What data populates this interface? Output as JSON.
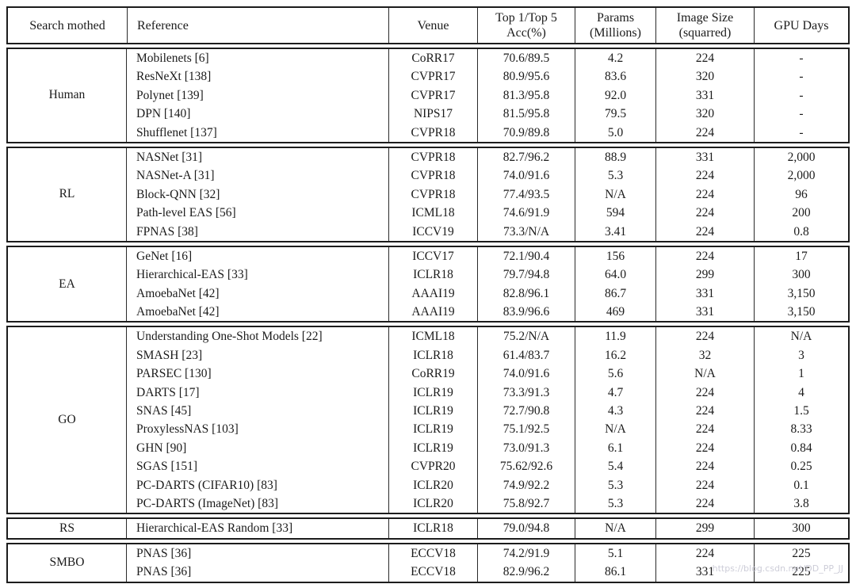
{
  "table": {
    "header": {
      "cells": [
        {
          "label": "Search mothed"
        },
        {
          "label": "Reference"
        },
        {
          "label": "Venue"
        },
        {
          "label": "Top 1/Top 5\nAcc(%)"
        },
        {
          "label": "Params\n(Millions)"
        },
        {
          "label": "Image Size\n(squarred)"
        },
        {
          "label": "GPU Days"
        }
      ]
    },
    "groups": [
      {
        "method": "Human",
        "rows": [
          {
            "reference": "Mobilenets [6]",
            "venue": "CoRR17",
            "acc": "70.6/89.5",
            "params": "4.2",
            "image_size": "224",
            "gpu_days": "-"
          },
          {
            "reference": "ResNeXt [138]",
            "venue": "CVPR17",
            "acc": "80.9/95.6",
            "params": "83.6",
            "image_size": "320",
            "gpu_days": "-"
          },
          {
            "reference": "Polynet [139]",
            "venue": "CVPR17",
            "acc": "81.3/95.8",
            "params": "92.0",
            "image_size": "331",
            "gpu_days": "-"
          },
          {
            "reference": "DPN [140]",
            "venue": "NIPS17",
            "acc": "81.5/95.8",
            "params": "79.5",
            "image_size": "320",
            "gpu_days": "-"
          },
          {
            "reference": "Shufflenet [137]",
            "venue": "CVPR18",
            "acc": "70.9/89.8",
            "params": "5.0",
            "image_size": "224",
            "gpu_days": "-"
          }
        ]
      },
      {
        "method": "RL",
        "rows": [
          {
            "reference": "NASNet [31]",
            "venue": "CVPR18",
            "acc": "82.7/96.2",
            "params": "88.9",
            "image_size": "331",
            "gpu_days": "2,000"
          },
          {
            "reference": "NASNet-A [31]",
            "venue": "CVPR18",
            "acc": "74.0/91.6",
            "params": "5.3",
            "image_size": "224",
            "gpu_days": "2,000"
          },
          {
            "reference": "Block-QNN [32]",
            "venue": "CVPR18",
            "acc": "77.4/93.5",
            "params": "N/A",
            "image_size": "224",
            "gpu_days": "96"
          },
          {
            "reference": "Path-level EAS [56]",
            "venue": "ICML18",
            "acc": "74.6/91.9",
            "params": "594",
            "image_size": "224",
            "gpu_days": "200"
          },
          {
            "reference": "FPNAS [38]",
            "venue": "ICCV19",
            "acc": "73.3/N/A",
            "params": "3.41",
            "image_size": "224",
            "gpu_days": "0.8"
          }
        ]
      },
      {
        "method": "EA",
        "rows": [
          {
            "reference": "GeNet [16]",
            "venue": "ICCV17",
            "acc": "72.1/90.4",
            "params": "156",
            "image_size": "224",
            "gpu_days": "17"
          },
          {
            "reference": "Hierarchical-EAS [33]",
            "venue": "ICLR18",
            "acc": "79.7/94.8",
            "params": "64.0",
            "image_size": "299",
            "gpu_days": "300"
          },
          {
            "reference": "AmoebaNet [42]",
            "venue": "AAAI19",
            "acc": "82.8/96.1",
            "params": "86.7",
            "image_size": "331",
            "gpu_days": "3,150"
          },
          {
            "reference": "AmoebaNet [42]",
            "venue": "AAAI19",
            "acc": "83.9/96.6",
            "params": "469",
            "image_size": "331",
            "gpu_days": "3,150"
          }
        ]
      },
      {
        "method": "GO",
        "rows": [
          {
            "reference": "Understanding One-Shot Models [22]",
            "venue": "ICML18",
            "acc": "75.2/N/A",
            "params": "11.9",
            "image_size": "224",
            "gpu_days": "N/A"
          },
          {
            "reference": "SMASH [23]",
            "venue": "ICLR18",
            "acc": "61.4/83.7",
            "params": "16.2",
            "image_size": "32",
            "gpu_days": "3"
          },
          {
            "reference": "PARSEC [130]",
            "venue": "CoRR19",
            "acc": "74.0/91.6",
            "params": "5.6",
            "image_size": "N/A",
            "gpu_days": "1"
          },
          {
            "reference": "DARTS [17]",
            "venue": "ICLR19",
            "acc": "73.3/91.3",
            "params": "4.7",
            "image_size": "224",
            "gpu_days": "4"
          },
          {
            "reference": "SNAS [45]",
            "venue": "ICLR19",
            "acc": "72.7/90.8",
            "params": "4.3",
            "image_size": "224",
            "gpu_days": "1.5"
          },
          {
            "reference": "ProxylessNAS [103]",
            "venue": "ICLR19",
            "acc": "75.1/92.5",
            "params": "N/A",
            "image_size": "224",
            "gpu_days": "8.33"
          },
          {
            "reference": "GHN [90]",
            "venue": "ICLR19",
            "acc": "73.0/91.3",
            "params": "6.1",
            "image_size": "224",
            "gpu_days": "0.84"
          },
          {
            "reference": "SGAS [151]",
            "venue": "CVPR20",
            "acc": "75.62/92.6",
            "params": "5.4",
            "image_size": "224",
            "gpu_days": "0.25"
          },
          {
            "reference": "PC-DARTS (CIFAR10) [83]",
            "venue": "ICLR20",
            "acc": "74.9/92.2",
            "params": "5.3",
            "image_size": "224",
            "gpu_days": "0.1"
          },
          {
            "reference": "PC-DARTS (ImageNet) [83]",
            "venue": "ICLR20",
            "acc": "75.8/92.7",
            "params": "5.3",
            "image_size": "224",
            "gpu_days": "3.8"
          }
        ]
      },
      {
        "method": "RS",
        "rows": [
          {
            "reference": "Hierarchical-EAS Random [33]",
            "venue": "ICLR18",
            "acc": "79.0/94.8",
            "params": "N/A",
            "image_size": "299",
            "gpu_days": "300"
          }
        ]
      },
      {
        "method": "SMBO",
        "rows": [
          {
            "reference": "PNAS [36]",
            "venue": "ECCV18",
            "acc": "74.2/91.9",
            "params": "5.1",
            "image_size": "224",
            "gpu_days": "225"
          },
          {
            "reference": "PNAS [36]",
            "venue": "ECCV18",
            "acc": "82.9/96.2",
            "params": "86.1",
            "image_size": "331",
            "gpu_days": "225"
          }
        ]
      }
    ]
  },
  "watermark": "https://blog.csdn.net/DD_PP_JJ"
}
